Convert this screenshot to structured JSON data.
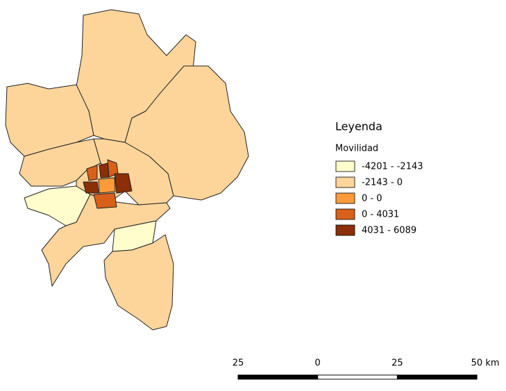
{
  "legend": {
    "title": "Leyenda",
    "subtitle": "Movilidad",
    "items": [
      {
        "label": "-4201 - -2143",
        "color": "#fffdcc"
      },
      {
        "label": "-2143 - 0",
        "color": "#fdd59a"
      },
      {
        "label": "0 - 0",
        "color": "#fd9b3b"
      },
      {
        "label": "0 - 4031",
        "color": "#d9601a"
      },
      {
        "label": "4031 - 6089",
        "color": "#8c2e08"
      }
    ]
  },
  "scale_bar": {
    "labels": [
      "25",
      "0",
      "25",
      "50 km"
    ]
  }
}
